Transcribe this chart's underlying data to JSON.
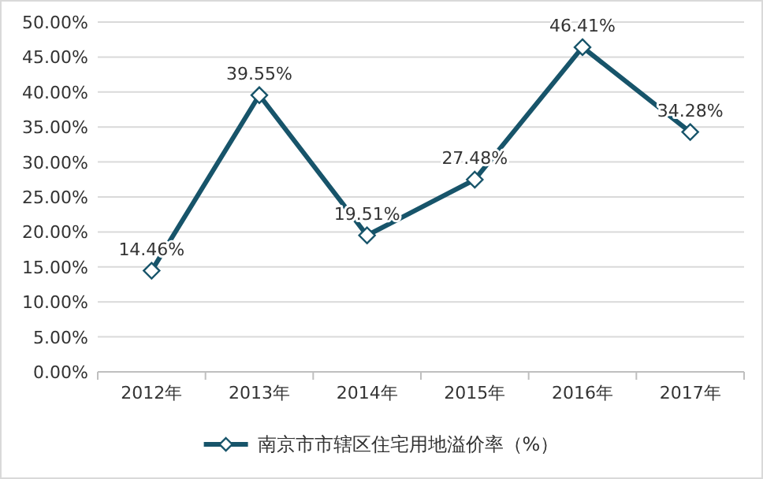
{
  "chart_data": {
    "type": "line",
    "categories": [
      "2012年",
      "2013年",
      "2014年",
      "2015年",
      "2016年",
      "2017年"
    ],
    "series": [
      {
        "name": "南京市市辖区住宅用地溢价率（%）",
        "color": "#17546a",
        "values": [
          14.46,
          39.55,
          19.51,
          27.48,
          46.41,
          34.28
        ],
        "value_labels": [
          "14.46%",
          "39.55%",
          "19.51%",
          "27.48%",
          "46.41%",
          "34.28%"
        ]
      }
    ],
    "ylim": [
      0,
      50
    ],
    "yticks": [
      {
        "value": 0,
        "label": "0.00%"
      },
      {
        "value": 5,
        "label": "5.00%"
      },
      {
        "value": 10,
        "label": "10.00%"
      },
      {
        "value": 15,
        "label": "15.00%"
      },
      {
        "value": 20,
        "label": "20.00%"
      },
      {
        "value": 25,
        "label": "25.00%"
      },
      {
        "value": 30,
        "label": "30.00%"
      },
      {
        "value": 35,
        "label": "35.00%"
      },
      {
        "value": 40,
        "label": "40.00%"
      },
      {
        "value": 45,
        "label": "45.00%"
      },
      {
        "value": 50,
        "label": "50.00%"
      }
    ],
    "grid": "y",
    "legend": "bottom",
    "marker": "diamond",
    "line_style": "solid"
  }
}
